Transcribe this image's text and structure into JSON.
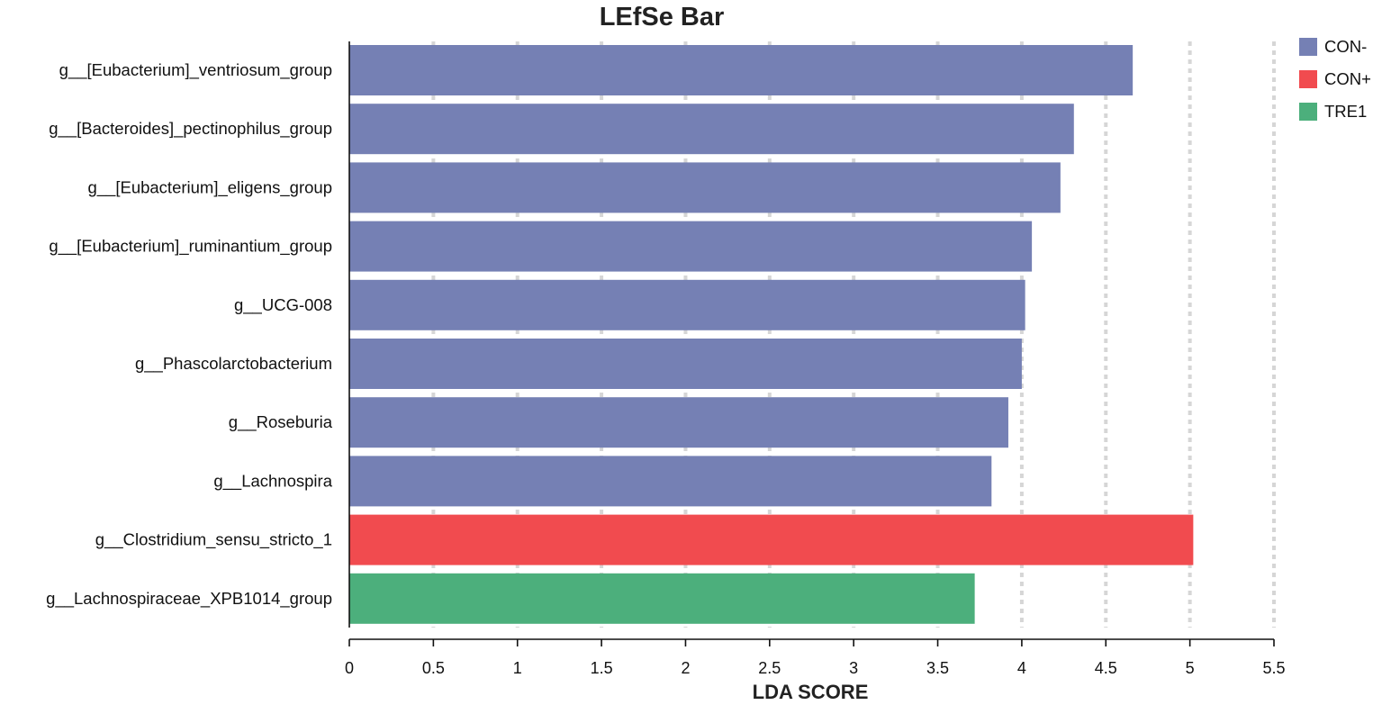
{
  "chart_data": {
    "type": "bar",
    "orientation": "horizontal",
    "title": "LEfSe Bar",
    "xlabel": "LDA SCORE",
    "ylabel": "",
    "xlim": [
      0,
      5.5
    ],
    "xticks": [
      "0",
      "0.5",
      "1",
      "1.5",
      "2",
      "2.5",
      "3",
      "3.5",
      "4",
      "4.5",
      "5",
      "5.5"
    ],
    "grid": "vertical-dotted",
    "legend_position": "top-right",
    "groups": [
      {
        "name": "CON-",
        "color": "#7580b4"
      },
      {
        "name": "CON+",
        "color": "#f14b4f"
      },
      {
        "name": "TRE1",
        "color": "#4caf7c"
      }
    ],
    "categories": [
      "g__[Eubacterium]_ventriosum_group",
      "g__[Bacteroides]_pectinophilus_group",
      "g__[Eubacterium]_eligens_group",
      "g__[Eubacterium]_ruminantium_group",
      "g__UCG-008",
      "g__Phascolarctobacterium",
      "g__Roseburia",
      "g__Lachnospira",
      "g__Clostridium_sensu_stricto_1",
      "g__Lachnospiraceae_XPB1014_group"
    ],
    "values": [
      4.66,
      4.31,
      4.23,
      4.06,
      4.02,
      4.0,
      3.92,
      3.82,
      5.02,
      3.72
    ],
    "bar_groups": [
      "CON-",
      "CON-",
      "CON-",
      "CON-",
      "CON-",
      "CON-",
      "CON-",
      "CON-",
      "CON+",
      "TRE1"
    ]
  }
}
